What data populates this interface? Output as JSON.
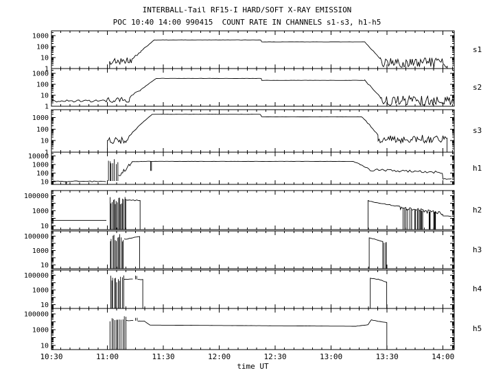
{
  "chart_data": {
    "type": "line",
    "title": "INTERBALL-Tail RF15-I HARD/SOFT X-RAY EMISSION",
    "subtitle": "POC 10:40 14:00 990415  COUNT RATE IN CHANNELS s1-s3, h1-h5",
    "xlabel": "time UT",
    "y_scale": "log",
    "grid": false,
    "legend": "panel names on right side",
    "x_ticks": [
      "10:30",
      "11:00",
      "11:30",
      "12:00",
      "12:30",
      "13:00",
      "13:30",
      "14:00"
    ],
    "x_range_hours": [
      10.5,
      14.1
    ],
    "panels": [
      {
        "name": "s1",
        "y_range_exp": [
          0,
          3.45
        ],
        "y_tick_exps": [
          3,
          2,
          1,
          0
        ],
        "y_tick_labels": [
          "1000",
          "100",
          "10",
          "1"
        ],
        "segments": [
          {
            "type": "gap",
            "t0": 10.5,
            "t1": 11.02
          },
          {
            "type": "flat",
            "t0": 11.02,
            "t1": 11.22,
            "level": 0.62,
            "amp": 0.38,
            "fromBottom": true
          },
          {
            "type": "ramp",
            "t0": 11.22,
            "t1": 11.3,
            "from": 0.8,
            "to": 1.6,
            "amp": 0.15
          },
          {
            "type": "ramp",
            "t0": 11.3,
            "t1": 11.42,
            "from": 1.6,
            "to": 2.62,
            "amp": 0.03
          },
          {
            "type": "flat",
            "t0": 11.42,
            "t1": 12.38,
            "level": 2.62,
            "amp": 0.008
          },
          {
            "type": "flat",
            "t0": 12.38,
            "t1": 13.3,
            "level": 2.44,
            "amp": 0.008
          },
          {
            "type": "ramp",
            "t0": 13.3,
            "t1": 13.44,
            "from": 2.44,
            "to": 0.9,
            "amp": 0.05
          },
          {
            "type": "flat",
            "t0": 13.44,
            "t1": 14.04,
            "level": 0.55,
            "amp": 0.45,
            "toBottom": true
          },
          {
            "type": "gap",
            "t0": 14.04,
            "t1": 14.1
          }
        ]
      },
      {
        "name": "s2",
        "y_range_exp": [
          0,
          3.45
        ],
        "y_tick_exps": [
          3,
          2,
          1,
          0
        ],
        "y_tick_labels": [
          "1000",
          "100",
          "10",
          "1"
        ],
        "segments": [
          {
            "type": "flat",
            "t0": 10.5,
            "t1": 11.0,
            "level": 0.48,
            "amp": 0.1
          },
          {
            "type": "flat",
            "t0": 11.0,
            "t1": 11.2,
            "level": 0.62,
            "amp": 0.3
          },
          {
            "type": "ramp",
            "t0": 11.2,
            "t1": 11.3,
            "from": 0.8,
            "to": 1.55,
            "amp": 0.12
          },
          {
            "type": "ramp",
            "t0": 11.3,
            "t1": 11.44,
            "from": 1.55,
            "to": 2.55,
            "amp": 0.03
          },
          {
            "type": "flat",
            "t0": 11.44,
            "t1": 12.38,
            "level": 2.55,
            "amp": 0.008
          },
          {
            "type": "flat",
            "t0": 12.38,
            "t1": 13.3,
            "level": 2.37,
            "amp": 0.008
          },
          {
            "type": "ramp",
            "t0": 13.3,
            "t1": 13.44,
            "from": 2.37,
            "to": 0.85,
            "amp": 0.05
          },
          {
            "type": "flat",
            "t0": 13.44,
            "t1": 14.1,
            "level": 0.5,
            "amp": 0.45
          }
        ]
      },
      {
        "name": "s3",
        "y_range_exp": [
          0,
          3.7
        ],
        "y_tick_exps": [
          3,
          2,
          1,
          0
        ],
        "y_tick_labels": [
          "1000",
          "100",
          "10",
          "1"
        ],
        "segments": [
          {
            "type": "gap",
            "t0": 10.5,
            "t1": 11.0
          },
          {
            "type": "flat",
            "t0": 11.0,
            "t1": 11.18,
            "level": 1.0,
            "amp": 0.3,
            "fromBottom": true
          },
          {
            "type": "ramp",
            "t0": 11.18,
            "t1": 11.28,
            "from": 1.15,
            "to": 2.3,
            "amp": 0.1
          },
          {
            "type": "ramp",
            "t0": 11.28,
            "t1": 11.4,
            "from": 2.3,
            "to": 3.3,
            "amp": 0.02
          },
          {
            "type": "flat",
            "t0": 11.4,
            "t1": 12.38,
            "level": 3.3,
            "amp": 0.006
          },
          {
            "type": "flat",
            "t0": 12.38,
            "t1": 13.28,
            "level": 3.08,
            "amp": 0.006
          },
          {
            "type": "ramp",
            "t0": 13.28,
            "t1": 13.42,
            "from": 3.08,
            "to": 1.5,
            "amp": 0.06
          },
          {
            "type": "flat",
            "t0": 13.42,
            "t1": 14.04,
            "level": 1.15,
            "amp": 0.35,
            "toBottom": true
          },
          {
            "type": "gap",
            "t0": 14.04,
            "t1": 14.1
          }
        ]
      },
      {
        "name": "h1",
        "y_range_exp": [
          0.7,
          4.45
        ],
        "y_tick_exps": [
          4,
          3,
          2,
          1
        ],
        "y_tick_labels": [
          "10000",
          "1000",
          "100",
          "10"
        ],
        "segments": [
          {
            "type": "flat",
            "t0": 10.5,
            "t1": 10.58,
            "level": 1.05,
            "amp": 0.05
          },
          {
            "type": "dropouts",
            "t0": 10.58,
            "t1": 10.68,
            "level": 1.05,
            "amp": 0.05,
            "n": 2
          },
          {
            "type": "flat",
            "t0": 10.68,
            "t1": 11.0,
            "level": 1.05,
            "amp": 0.06
          },
          {
            "type": "spikes",
            "t0": 11.0,
            "t1": 11.1,
            "top": 3.1,
            "var": 0.55,
            "n": 7,
            "base": 1.1
          },
          {
            "type": "ramp",
            "t0": 11.1,
            "t1": 11.22,
            "from": 1.6,
            "to": 3.3,
            "amp": 0.22
          },
          {
            "type": "flat",
            "t0": 11.22,
            "t1": 11.3,
            "level": 3.36,
            "amp": 0.04
          },
          {
            "type": "dropouts",
            "t0": 11.3,
            "t1": 11.4,
            "level": 3.38,
            "amp": 0.02,
            "n": 2,
            "depth": 1.1
          },
          {
            "type": "flat",
            "t0": 11.4,
            "t1": 13.2,
            "level": 3.38,
            "amp": 0.01
          },
          {
            "type": "ramp",
            "t0": 13.2,
            "t1": 13.35,
            "from": 3.38,
            "to": 2.45,
            "amp": 0.06
          },
          {
            "type": "ramp",
            "t0": 13.35,
            "t1": 14.0,
            "from": 2.4,
            "to": 2.1,
            "amp": 0.13
          },
          {
            "type": "flat",
            "t0": 14.0,
            "t1": 14.08,
            "level": 1.35,
            "amp": 0.05
          }
        ]
      },
      {
        "name": "h2",
        "y_range_exp": [
          0.5,
          5.7
        ],
        "y_tick_exps": [
          5,
          3,
          1
        ],
        "y_tick_labels": [
          "100000",
          "1000",
          "10"
        ],
        "segments": [
          {
            "type": "flat",
            "t0": 10.5,
            "t1": 11.0,
            "level": 1.72,
            "amp": 0
          },
          {
            "type": "gap",
            "t0": 11.0,
            "t1": 11.02
          },
          {
            "type": "spikes",
            "t0": 11.02,
            "t1": 11.17,
            "top": 4.35,
            "var": 0.5,
            "n": 16
          },
          {
            "type": "flat",
            "t0": 11.17,
            "t1": 11.3,
            "level": 4.4,
            "amp": 0.06,
            "toBottom": true
          },
          {
            "type": "gap",
            "t0": 11.3,
            "t1": 13.33
          },
          {
            "type": "ramp",
            "t0": 13.33,
            "t1": 13.4,
            "from": 4.35,
            "to": 4.1,
            "amp": 0.03,
            "fromBottom": true
          },
          {
            "type": "ramp",
            "t0": 13.4,
            "t1": 13.62,
            "from": 4.1,
            "to": 3.55,
            "amp": 0.05
          },
          {
            "type": "dropouts",
            "t0": 13.62,
            "t1": 14.0,
            "from": 3.35,
            "to": 2.7,
            "amp": 0.25,
            "n": 26
          },
          {
            "type": "flat",
            "t0": 14.0,
            "t1": 14.08,
            "level": 2.3,
            "amp": 0.05
          }
        ]
      },
      {
        "name": "h3",
        "y_range_exp": [
          0.5,
          5.7
        ],
        "y_tick_exps": [
          5,
          3,
          1
        ],
        "y_tick_labels": [
          "100000",
          "1000",
          "10"
        ],
        "segments": [
          {
            "type": "gap",
            "t0": 10.5,
            "t1": 11.02
          },
          {
            "type": "spikes",
            "t0": 11.02,
            "t1": 11.15,
            "top": 4.75,
            "var": 0.55,
            "n": 12
          },
          {
            "type": "ramp",
            "t0": 11.15,
            "t1": 11.3,
            "from": 4.55,
            "to": 5.0,
            "amp": 0.05,
            "toBottom": true
          },
          {
            "type": "gap",
            "t0": 11.3,
            "t1": 13.34
          },
          {
            "type": "ramp",
            "t0": 13.34,
            "t1": 13.4,
            "from": 4.75,
            "to": 4.55,
            "amp": 0.03,
            "fromBottom": true
          },
          {
            "type": "ramp",
            "t0": 13.4,
            "t1": 13.47,
            "from": 4.55,
            "to": 4.2,
            "amp": 0.04,
            "toBottom": true
          },
          {
            "type": "spikes",
            "t0": 13.47,
            "t1": 13.5,
            "top": 4.15,
            "var": 0.25,
            "n": 3
          },
          {
            "type": "gap",
            "t0": 13.5,
            "t1": 14.1
          }
        ]
      },
      {
        "name": "h4",
        "y_range_exp": [
          0.5,
          5.7
        ],
        "y_tick_exps": [
          5,
          3,
          1
        ],
        "y_tick_labels": [
          "100000",
          "1000",
          "10"
        ],
        "segments": [
          {
            "type": "gap",
            "t0": 10.5,
            "t1": 11.02
          },
          {
            "type": "spikes",
            "t0": 11.02,
            "t1": 11.15,
            "top": 4.55,
            "var": 0.5,
            "n": 11
          },
          {
            "type": "flat",
            "t0": 11.15,
            "t1": 11.24,
            "level": 4.45,
            "amp": 0.05
          },
          {
            "type": "spikes",
            "t0": 11.24,
            "t1": 11.27,
            "top": 4.85,
            "var": 0.1,
            "n": 2,
            "base": 4.45
          },
          {
            "type": "flat",
            "t0": 11.27,
            "t1": 11.33,
            "level": 4.42,
            "amp": 0.04,
            "toBottom": true
          },
          {
            "type": "gap",
            "t0": 11.33,
            "t1": 13.35
          },
          {
            "type": "ramp",
            "t0": 13.35,
            "t1": 13.42,
            "from": 4.6,
            "to": 4.45,
            "amp": 0.03,
            "fromBottom": true
          },
          {
            "type": "ramp",
            "t0": 13.42,
            "t1": 13.5,
            "from": 4.45,
            "to": 4.05,
            "amp": 0.04,
            "toBottom": true
          },
          {
            "type": "gap",
            "t0": 13.5,
            "t1": 14.1
          }
        ]
      },
      {
        "name": "h5",
        "y_range_exp": [
          0.5,
          5.7
        ],
        "y_tick_exps": [
          5,
          3,
          1
        ],
        "y_tick_labels": [
          "100000",
          "1000",
          "10"
        ],
        "segments": [
          {
            "type": "gap",
            "t0": 10.5,
            "t1": 11.02
          },
          {
            "type": "spikes",
            "t0": 11.02,
            "t1": 11.17,
            "top": 4.6,
            "var": 0.55,
            "n": 11
          },
          {
            "type": "flat",
            "t0": 11.17,
            "t1": 11.24,
            "level": 4.15,
            "amp": 0.05
          },
          {
            "type": "spikes",
            "t0": 11.24,
            "t1": 11.27,
            "top": 4.5,
            "var": 0.1,
            "n": 2,
            "base": 4.15
          },
          {
            "type": "flat",
            "t0": 11.27,
            "t1": 11.33,
            "level": 4.1,
            "amp": 0.04
          },
          {
            "type": "ramp",
            "t0": 11.33,
            "t1": 11.38,
            "from": 4.1,
            "to": 3.6,
            "amp": 0.02
          },
          {
            "type": "ramp",
            "t0": 11.38,
            "t1": 13.22,
            "from": 3.6,
            "to": 3.45,
            "amp": 0.004
          },
          {
            "type": "ramp",
            "t0": 13.22,
            "t1": 13.32,
            "from": 3.45,
            "to": 3.62,
            "amp": 0.01
          },
          {
            "type": "ramp",
            "t0": 13.33,
            "t1": 13.36,
            "from": 3.62,
            "to": 4.25,
            "amp": 0.05
          },
          {
            "type": "ramp",
            "t0": 13.36,
            "t1": 13.5,
            "from": 4.25,
            "to": 3.9,
            "amp": 0.03,
            "toBottom": true
          },
          {
            "type": "gap",
            "t0": 13.5,
            "t1": 14.1
          }
        ]
      }
    ]
  }
}
